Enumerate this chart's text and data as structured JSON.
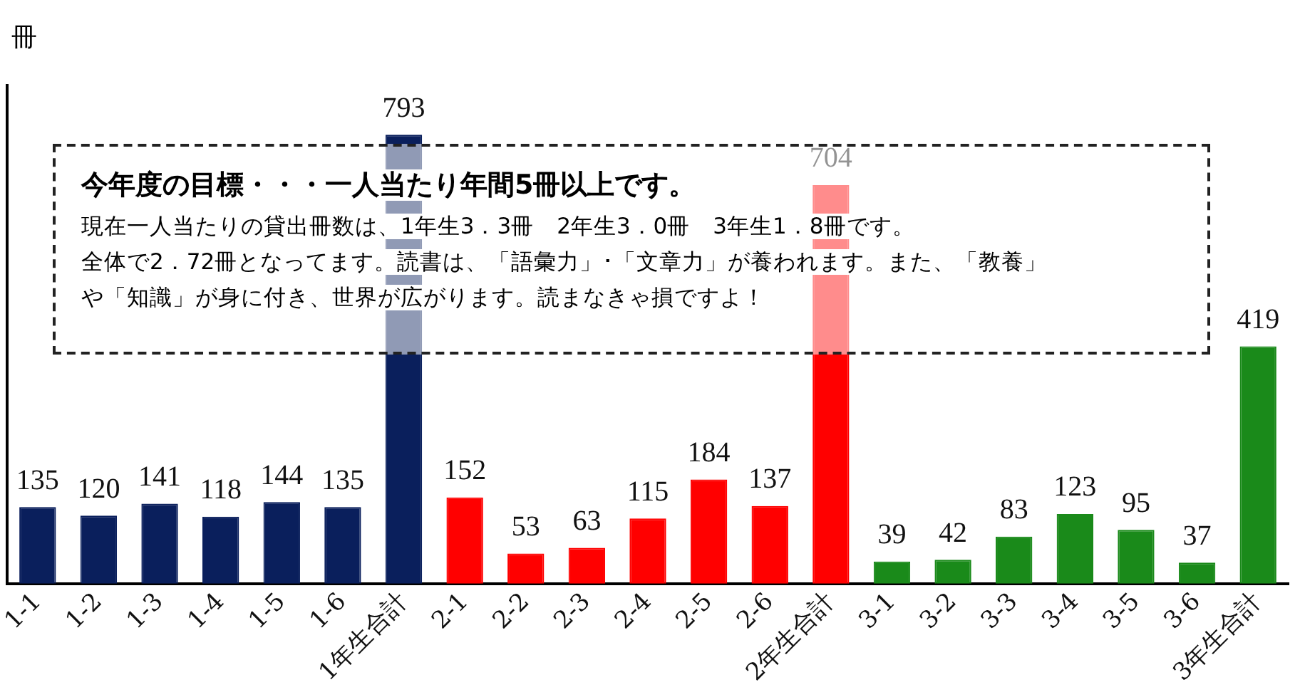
{
  "chart_data": {
    "type": "bar",
    "ylabel": "冊",
    "categories": [
      "1-1",
      "1-2",
      "1-3",
      "1-4",
      "1-5",
      "1-6",
      "1年生合計",
      "2-1",
      "2-2",
      "2-3",
      "2-4",
      "2-5",
      "2-6",
      "2年生合計",
      "3-1",
      "3-2",
      "3-3",
      "3-4",
      "3-5",
      "3-6",
      "3年生合計"
    ],
    "values": [
      135,
      120,
      141,
      118,
      144,
      135,
      793,
      152,
      53,
      63,
      115,
      184,
      137,
      704,
      39,
      42,
      83,
      123,
      95,
      37,
      419
    ],
    "colors": [
      "#0a1f5c",
      "#0a1f5c",
      "#0a1f5c",
      "#0a1f5c",
      "#0a1f5c",
      "#0a1f5c",
      "#0a1f5c",
      "#ff0000",
      "#ff0000",
      "#ff0000",
      "#ff0000",
      "#ff0000",
      "#ff0000",
      "#ff0000",
      "#1a8a1a",
      "#1a8a1a",
      "#1a8a1a",
      "#1a8a1a",
      "#1a8a1a",
      "#1a8a1a",
      "#1a8a1a"
    ],
    "ylim": [
      0,
      880
    ],
    "tick_labels": "x",
    "grid": false,
    "legend": false,
    "data_labels": true,
    "annotations": [
      "今年度の目標・・・一人当たり年間5冊以上です。",
      "現在一人当たりの貸出冊数は、1年生3．3冊　2年生3．0冊　3年生1．8冊です。",
      "全体で2．72冊となってます。読書は、「語彙力」･「文章力」が養われます。また、「教養」",
      "や「知識」が身に付き、世界が広がります。読まなきゃ損ですよ！"
    ]
  }
}
